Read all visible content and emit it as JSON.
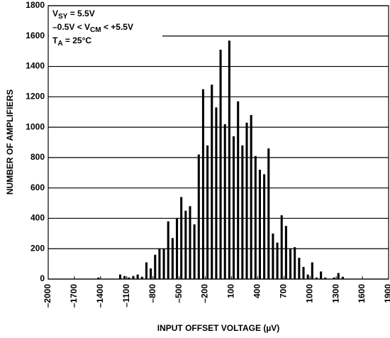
{
  "chart_data": {
    "type": "histogram",
    "xlabel": "INPUT OFFSET VOLTAGE (µV)",
    "ylabel": "NUMBER OF AMPLIFIERS",
    "annotations": [
      [
        {
          "text": "V"
        },
        {
          "text": "SY",
          "sub": true
        },
        {
          "text": " = 5.5V"
        }
      ],
      [
        {
          "text": "–0.5V < V"
        },
        {
          "text": "CM",
          "sub": true
        },
        {
          "text": " < +5.5V"
        }
      ],
      [
        {
          "text": "T"
        },
        {
          "text": "A",
          "sub": true
        },
        {
          "text": " = 25°C"
        }
      ]
    ],
    "color": "#000000",
    "grid": true,
    "bins": [
      -1450,
      -1400,
      -1350,
      -1300,
      -1250,
      -1200,
      -1150,
      -1100,
      -1050,
      -1000,
      -950,
      -900,
      -850,
      -800,
      -750,
      -700,
      -650,
      -600,
      -550,
      -500,
      -450,
      -400,
      -350,
      -300,
      -250,
      -200,
      -150,
      -100,
      -50,
      0,
      50,
      100,
      150,
      200,
      250,
      300,
      350,
      400,
      450,
      500,
      550,
      600,
      650,
      700,
      750,
      800,
      850,
      900,
      950,
      1000,
      1050,
      1100,
      1150,
      1200,
      1250,
      1300,
      1350,
      1400,
      1450
    ],
    "counts": [
      10,
      0,
      0,
      0,
      0,
      30,
      20,
      10,
      20,
      30,
      15,
      110,
      70,
      160,
      200,
      200,
      380,
      270,
      400,
      540,
      450,
      480,
      360,
      820,
      1250,
      880,
      1280,
      1130,
      1510,
      1020,
      1570,
      940,
      1170,
      880,
      1030,
      1080,
      810,
      720,
      690,
      860,
      300,
      240,
      420,
      350,
      200,
      210,
      140,
      80,
      30,
      110,
      10,
      50,
      10,
      0,
      10,
      40,
      15,
      0
    ],
    "xlim": [
      -2000,
      1900
    ],
    "ylim": [
      0,
      1800
    ],
    "xticks": [
      {
        "value": -2000,
        "label": "–2000"
      },
      {
        "value": -1700,
        "label": "–1700"
      },
      {
        "value": -1400,
        "label": "–1400"
      },
      {
        "value": -1100,
        "label": "–1100"
      },
      {
        "value": -800,
        "label": "–800"
      },
      {
        "value": -500,
        "label": "–500"
      },
      {
        "value": -200,
        "label": "–200"
      },
      100,
      400,
      700,
      1000,
      1300,
      1600,
      1900
    ],
    "yticks": [
      0,
      200,
      400,
      600,
      800,
      1000,
      1200,
      1400,
      1600,
      1800
    ]
  }
}
